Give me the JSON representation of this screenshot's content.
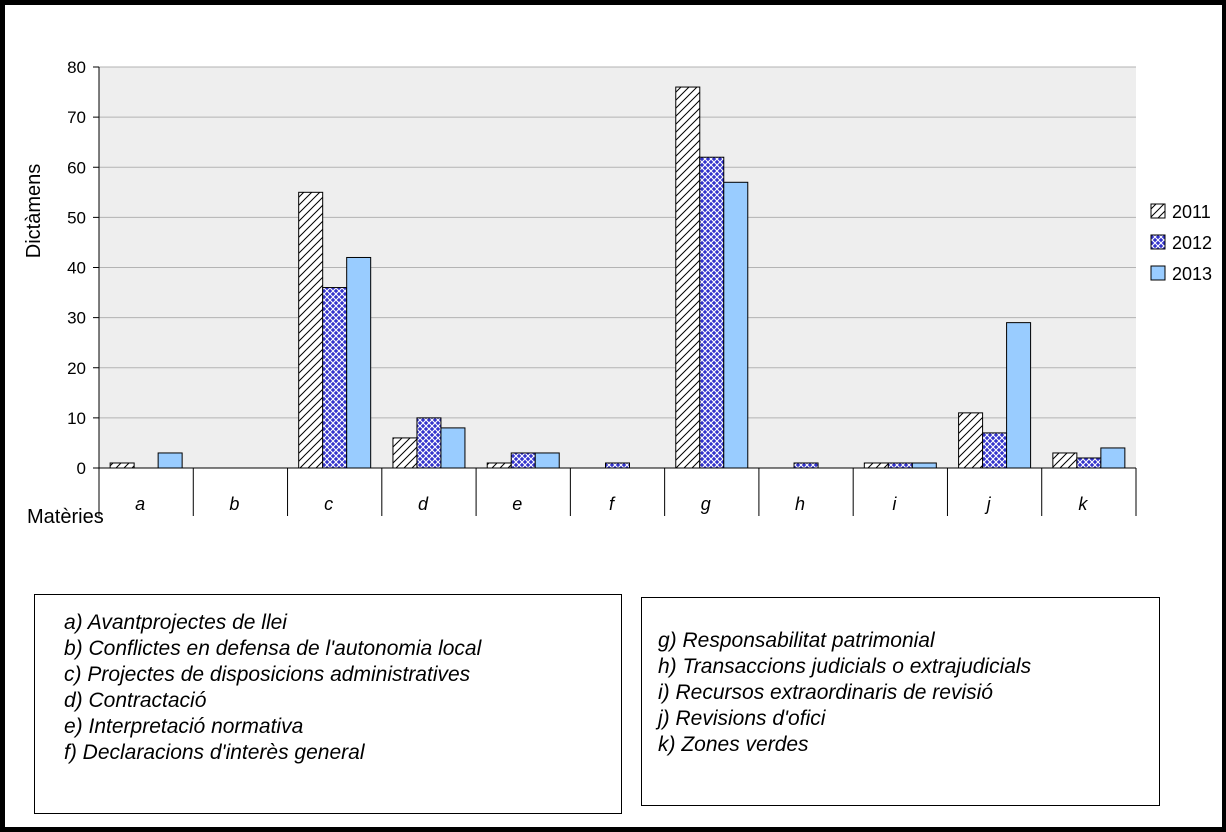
{
  "chart_data": {
    "type": "bar",
    "title": "",
    "xlabel": "Matèries",
    "ylabel": "Dictàmens",
    "ylim": [
      0,
      80
    ],
    "yticks": [
      0,
      10,
      20,
      30,
      40,
      50,
      60,
      70,
      80
    ],
    "grid": true,
    "legend_position": "right",
    "categories": [
      "a",
      "b",
      "c",
      "d",
      "e",
      "f",
      "g",
      "h",
      "i",
      "j",
      "k"
    ],
    "series": [
      {
        "name": "2011",
        "pattern": "diagonal-hatch",
        "color": "#ffffff",
        "values": [
          1,
          0,
          55,
          6,
          1,
          0,
          76,
          0,
          1,
          11,
          3
        ]
      },
      {
        "name": "2012",
        "pattern": "crosshatch",
        "color": "#3333cc",
        "values": [
          0,
          0,
          36,
          10,
          3,
          1,
          62,
          1,
          1,
          7,
          2
        ]
      },
      {
        "name": "2013",
        "pattern": "solid",
        "color": "#99ccff",
        "values": [
          3,
          0,
          42,
          8,
          3,
          0,
          57,
          0,
          1,
          29,
          4
        ]
      }
    ]
  },
  "category_legend": {
    "left": [
      "a) Avantprojectes de llei",
      "b) Conflictes en defensa de l'autonomia local",
      "c) Projectes de disposicions administratives",
      "d) Contractació",
      "e) Interpretació normativa",
      "f) Declaracions d'interès general"
    ],
    "right": [
      "g) Responsabilitat patrimonial",
      "h) Transaccions judicials o extrajudicials",
      "i) Recursos extraordinaris de revisió",
      "j) Revisions d'ofici",
      "k) Zones verdes"
    ]
  }
}
